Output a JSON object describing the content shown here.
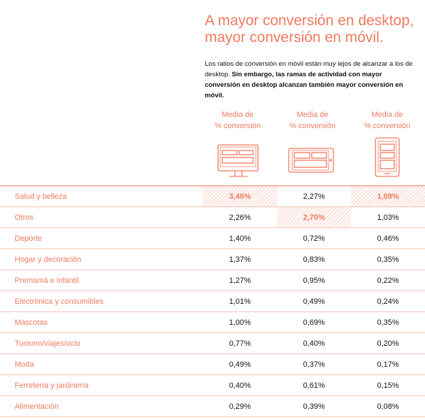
{
  "header": {
    "title": [
      "A mayor conversión en desktop,",
      "mayor conversión en móvil."
    ],
    "description": {
      "normal": "Los ratios de conversión en móvil están muy lejos de alcanzar a los de desktop.",
      "bold": "Sin embargo, las ramas de actividad con mayor conversión en desktop alcanzan también mayor conversión en móvil."
    }
  },
  "table": {
    "columns": [
      [
        "Media de",
        "% conversión"
      ],
      [
        "Media de",
        "% conversión"
      ],
      [
        "Media de",
        "% conversión"
      ]
    ],
    "rows": [
      [
        "Salud y belleza",
        "3,46%",
        "2,27%",
        "1,09%"
      ],
      [
        "Otros",
        "2,26%",
        "2,70%",
        "1,03%"
      ],
      [
        "Deporte",
        "1,40%",
        "0,72%",
        "0,46%"
      ],
      [
        "Hogar y decoración",
        "1,37%",
        "0,83%",
        "0,35%"
      ],
      [
        "Premamá e infantil",
        "1,27%",
        "0,95%",
        "0,22%"
      ],
      [
        "Electrónica y consumibles",
        "1,01%",
        "0,49%",
        "0,24%"
      ],
      [
        "Mascotas",
        "1,00%",
        "0,69%",
        "0,35%"
      ],
      [
        "Turismo/viajes/ocio",
        "0,77%",
        "0,40%",
        "0,20%"
      ],
      [
        "Moda",
        "0,49%",
        "0,37%",
        "0,17%"
      ],
      [
        "Ferretería y jardinería",
        "0,40%",
        "0,61%",
        "0,15%"
      ],
      [
        "Alimentación",
        "0,29%",
        "0,39%",
        "0,08%"
      ]
    ]
  }
}
